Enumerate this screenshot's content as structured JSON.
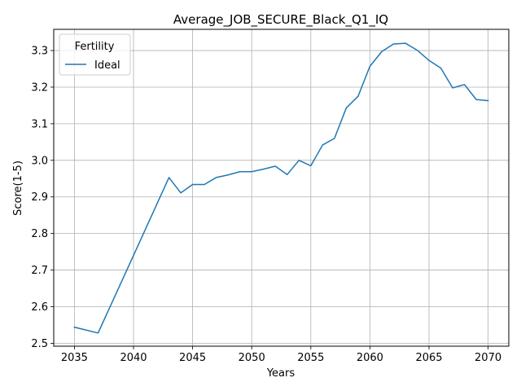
{
  "chart_data": {
    "type": "line",
    "title": "Average_JOB_SECURE_Black_Q1_IQ",
    "xlabel": "Years",
    "ylabel": "Score(1-5)",
    "xlim": [
      2033.25,
      2071.75
    ],
    "ylim": [
      2.492,
      3.358
    ],
    "x_ticks": [
      2035,
      2040,
      2045,
      2050,
      2055,
      2060,
      2065,
      2070
    ],
    "y_ticks": [
      2.5,
      2.6,
      2.7,
      2.8,
      2.9,
      3.0,
      3.1,
      3.2,
      3.3
    ],
    "x_tick_labels": [
      "2035",
      "2040",
      "2045",
      "2050",
      "2055",
      "2060",
      "2065",
      "2070"
    ],
    "y_tick_labels": [
      "2.5",
      "2.6",
      "2.7",
      "2.8",
      "2.9",
      "3.0",
      "3.1",
      "3.2",
      "3.3"
    ],
    "grid": true,
    "legend": {
      "title": "Fertility",
      "placement": "upper-left"
    },
    "series": [
      {
        "name": "Ideal",
        "color": "#1f77b4",
        "x": [
          2035,
          2037,
          2040,
          2043,
          2044,
          2045,
          2046,
          2047,
          2048,
          2049,
          2050,
          2051,
          2052,
          2053,
          2054,
          2055,
          2056,
          2057,
          2058,
          2059,
          2060,
          2061,
          2062,
          2063,
          2064,
          2065,
          2066,
          2067,
          2068,
          2069,
          2070
        ],
        "y": [
          2.544,
          2.528,
          2.74,
          2.953,
          2.911,
          2.934,
          2.934,
          2.953,
          2.96,
          2.969,
          2.969,
          2.976,
          2.984,
          2.961,
          3.0,
          2.985,
          3.042,
          3.06,
          3.143,
          3.175,
          3.257,
          3.297,
          3.318,
          3.32,
          3.301,
          3.273,
          3.252,
          3.198,
          3.207,
          3.166,
          3.163
        ]
      }
    ]
  }
}
